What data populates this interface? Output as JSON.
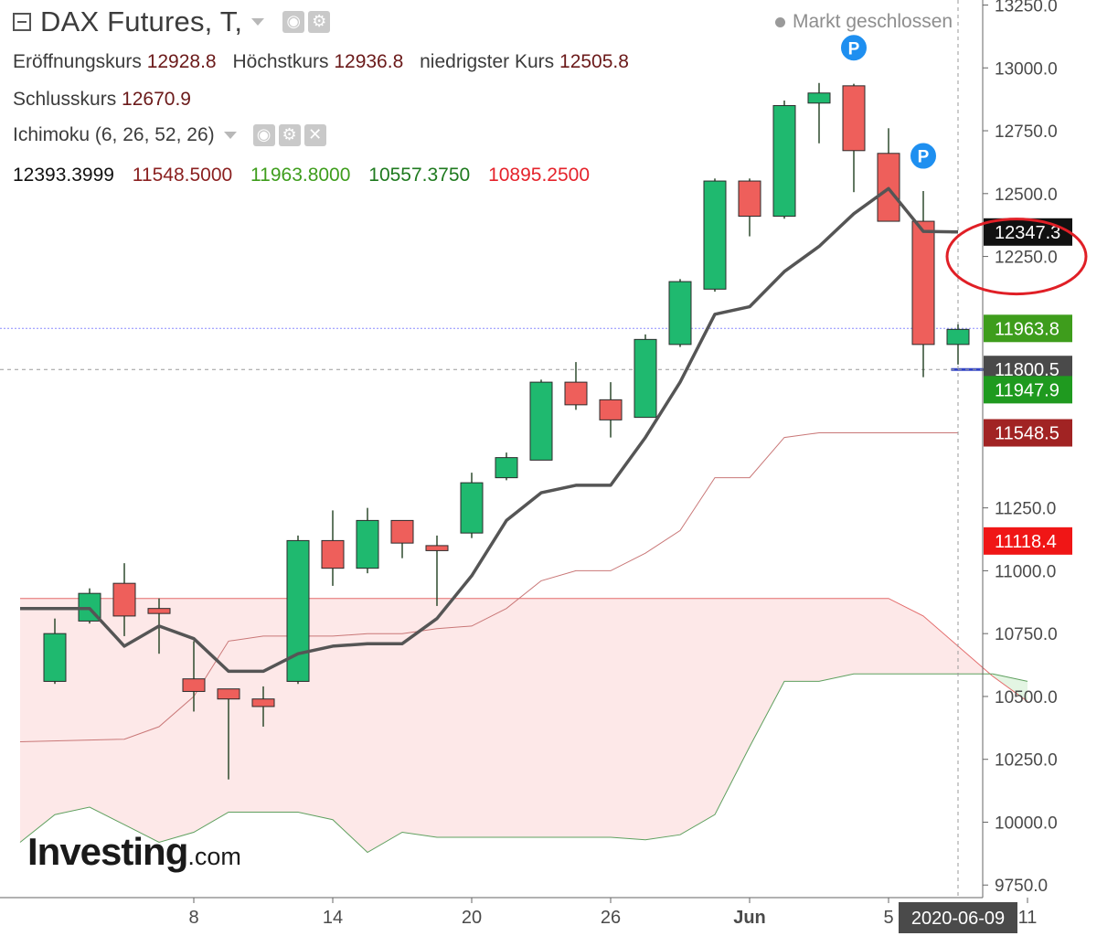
{
  "header": {
    "title": "DAX Futures, T,",
    "market_status": "Markt geschlossen",
    "ohlc": [
      {
        "label": "Eröffnungskurs",
        "value": "12928.8"
      },
      {
        "label": "Höchstkurs",
        "value": "12936.8"
      },
      {
        "label": "niedrigster Kurs",
        "value": "12505.8"
      },
      {
        "label": "Schlusskurs",
        "value": "12670.9"
      }
    ],
    "indicator": {
      "name": "Ichimoku (6, 26, 52, 26)",
      "values": [
        {
          "text": "12393.3999",
          "color": "#111111"
        },
        {
          "text": "11548.5000",
          "color": "#8b2121"
        },
        {
          "text": "11963.8000",
          "color": "#3e9d1c"
        },
        {
          "text": "10557.3750",
          "color": "#1f7a1f"
        },
        {
          "text": "10895.2500",
          "color": "#e5232b"
        }
      ]
    }
  },
  "logo": {
    "main": "Investing",
    "suffix": ".com"
  },
  "colors": {
    "up": "#1fb96f",
    "down": "#ee5f5b",
    "tenkan": "#555555",
    "kijun": "#c97777",
    "span_a": "#e36b6b",
    "span_b": "#5fa05f",
    "cloud": "#fde8e8",
    "cloud_green": "#e3f5e3"
  },
  "chart_data": {
    "type": "candlestick",
    "y_ticks": [
      "13250.0",
      "13000.0",
      "12750.0",
      "12500.0",
      "12250.0",
      "11250.0",
      "11000.0",
      "10750.0",
      "10500.0",
      "10250.0",
      "10000.0",
      "9750.0"
    ],
    "ylim": [
      9700,
      13270
    ],
    "x_ticks": [
      {
        "label": "8",
        "x": 5
      },
      {
        "label": "14",
        "x": 9
      },
      {
        "label": "20",
        "x": 13
      },
      {
        "label": "26",
        "x": 17
      },
      {
        "label": "Jun",
        "x": 21
      },
      {
        "label": "5",
        "x": 25
      },
      {
        "label": "11",
        "x": 29
      }
    ],
    "crosshair": {
      "x": 27,
      "y": 11800.5,
      "x_label": "2020-06-09"
    },
    "candles": [
      {
        "x": 1,
        "o": 10560,
        "h": 10810,
        "l": 10550,
        "c": 10750
      },
      {
        "x": 2,
        "o": 10800,
        "h": 10930,
        "l": 10790,
        "c": 10910
      },
      {
        "x": 3,
        "o": 10950,
        "h": 11030,
        "l": 10740,
        "c": 10820
      },
      {
        "x": 4,
        "o": 10850,
        "h": 10890,
        "l": 10670,
        "c": 10830
      },
      {
        "x": 5,
        "o": 10570,
        "h": 10720,
        "l": 10440,
        "c": 10520
      },
      {
        "x": 6,
        "o": 10530,
        "h": 10530,
        "l": 10170,
        "c": 10490
      },
      {
        "x": 7,
        "o": 10490,
        "h": 10540,
        "l": 10380,
        "c": 10460
      },
      {
        "x": 8,
        "o": 10560,
        "h": 11140,
        "l": 10550,
        "c": 11120
      },
      {
        "x": 9,
        "o": 11120,
        "h": 11240,
        "l": 10940,
        "c": 11010
      },
      {
        "x": 10,
        "o": 11010,
        "h": 11250,
        "l": 10990,
        "c": 11200
      },
      {
        "x": 11,
        "o": 11200,
        "h": 11200,
        "l": 11050,
        "c": 11110
      },
      {
        "x": 12,
        "o": 11100,
        "h": 11140,
        "l": 10860,
        "c": 11080
      },
      {
        "x": 13,
        "o": 11150,
        "h": 11390,
        "l": 11130,
        "c": 11350
      },
      {
        "x": 14,
        "o": 11370,
        "h": 11470,
        "l": 11360,
        "c": 11450
      },
      {
        "x": 15,
        "o": 11440,
        "h": 11760,
        "l": 11440,
        "c": 11750
      },
      {
        "x": 16,
        "o": 11750,
        "h": 11830,
        "l": 11640,
        "c": 11660
      },
      {
        "x": 17,
        "o": 11680,
        "h": 11750,
        "l": 11530,
        "c": 11600
      },
      {
        "x": 18,
        "o": 11610,
        "h": 11940,
        "l": 11610,
        "c": 11920
      },
      {
        "x": 19,
        "o": 11900,
        "h": 12160,
        "l": 11890,
        "c": 12150
      },
      {
        "x": 20,
        "o": 12120,
        "h": 12560,
        "l": 12110,
        "c": 12550
      },
      {
        "x": 21,
        "o": 12550,
        "h": 12560,
        "l": 12330,
        "c": 12410
      },
      {
        "x": 22,
        "o": 12410,
        "h": 12870,
        "l": 12400,
        "c": 12850
      },
      {
        "x": 23,
        "o": 12860,
        "h": 12940,
        "l": 12700,
        "c": 12900
      },
      {
        "x": 24,
        "o": 12928.8,
        "h": 12936.8,
        "l": 12505.8,
        "c": 12670.9
      },
      {
        "x": 25,
        "o": 12660,
        "h": 12760,
        "l": 12390,
        "c": 12390
      },
      {
        "x": 26,
        "o": 12390,
        "h": 12510,
        "l": 11770,
        "c": 11900
      },
      {
        "x": 27,
        "o": 11900,
        "h": 11980,
        "l": 11820,
        "c": 11960
      }
    ],
    "tenkan": [
      [
        0,
        10850
      ],
      [
        2,
        10850
      ],
      [
        3,
        10700
      ],
      [
        4,
        10780
      ],
      [
        5,
        10730
      ],
      [
        6,
        10600
      ],
      [
        7,
        10600
      ],
      [
        8,
        10670
      ],
      [
        9,
        10700
      ],
      [
        10,
        10710
      ],
      [
        11,
        10710
      ],
      [
        12,
        10810
      ],
      [
        13,
        10980
      ],
      [
        14,
        11200
      ],
      [
        15,
        11310
      ],
      [
        16,
        11340
      ],
      [
        17,
        11340
      ],
      [
        18,
        11530
      ],
      [
        19,
        11750
      ],
      [
        20,
        12020
      ],
      [
        21,
        12050
      ],
      [
        22,
        12190
      ],
      [
        23,
        12290
      ],
      [
        24,
        12420
      ],
      [
        25,
        12520
      ],
      [
        26,
        12350
      ],
      [
        27,
        12347.3
      ]
    ],
    "kijun": [
      [
        0,
        10320
      ],
      [
        3,
        10330
      ],
      [
        4,
        10380
      ],
      [
        5,
        10500
      ],
      [
        6,
        10720
      ],
      [
        7,
        10740
      ],
      [
        8,
        10740
      ],
      [
        9,
        10740
      ],
      [
        10,
        10750
      ],
      [
        11,
        10750
      ],
      [
        12,
        10770
      ],
      [
        13,
        10780
      ],
      [
        14,
        10850
      ],
      [
        15,
        10960
      ],
      [
        16,
        11000
      ],
      [
        17,
        11000
      ],
      [
        18,
        11070
      ],
      [
        19,
        11160
      ],
      [
        20,
        11370
      ],
      [
        21,
        11370
      ],
      [
        22,
        11530
      ],
      [
        23,
        11548.5
      ],
      [
        24,
        11548.5
      ],
      [
        27,
        11548.5
      ]
    ],
    "span_a": [
      [
        0,
        10890
      ],
      [
        25,
        10890
      ],
      [
        26,
        10820
      ],
      [
        28,
        10580
      ],
      [
        29,
        10480
      ]
    ],
    "span_b": [
      [
        0,
        9920
      ],
      [
        1,
        10030
      ],
      [
        2,
        10060
      ],
      [
        3,
        9990
      ],
      [
        4,
        9920
      ],
      [
        5,
        9960
      ],
      [
        6,
        10040
      ],
      [
        7,
        10040
      ],
      [
        8,
        10040
      ],
      [
        9,
        10010
      ],
      [
        10,
        9880
      ],
      [
        11,
        9960
      ],
      [
        12,
        9940
      ],
      [
        13,
        9940
      ],
      [
        14,
        9940
      ],
      [
        15,
        9940
      ],
      [
        16,
        9940
      ],
      [
        17,
        9940
      ],
      [
        18,
        9930
      ],
      [
        19,
        9950
      ],
      [
        20,
        10030
      ],
      [
        21,
        10300
      ],
      [
        22,
        10560
      ],
      [
        23,
        10560
      ],
      [
        24,
        10590
      ],
      [
        25,
        10590
      ],
      [
        26,
        10590
      ],
      [
        27,
        10590
      ],
      [
        28,
        10590
      ],
      [
        29,
        10560
      ]
    ],
    "h_lines": [
      {
        "name": "chikou-level",
        "y": 11963.8,
        "color": "#8b8bff",
        "style": "dotted"
      },
      {
        "name": "last-price-line",
        "y": 11800.5,
        "x_from": 26.8,
        "x_to": 28,
        "color": "#3042c6",
        "style": "solid"
      }
    ],
    "price_labels": [
      {
        "text": "12347.3",
        "y": 12347.3,
        "bg": "#111111",
        "fg": "#ffffff"
      },
      {
        "text": "11963.8",
        "y": 11963.8,
        "bg": "#3e9d1c",
        "fg": "#ffffff"
      },
      {
        "text": "11800.5",
        "y": 11800.5,
        "bg": "#4a4a4a",
        "fg": "#ffffff"
      },
      {
        "text": "11947.9",
        "y": 11720,
        "bg": "#1f9a1f",
        "fg": "#ffffff"
      },
      {
        "text": "11548.5",
        "y": 11548.5,
        "bg": "#a12323",
        "fg": "#ffffff"
      },
      {
        "text": "11118.4",
        "y": 11118.4,
        "bg": "#f01616",
        "fg": "#ffffff"
      }
    ],
    "markers": [
      {
        "text": "P",
        "x": 24,
        "y": 13080
      },
      {
        "text": "P",
        "x": 26,
        "y": 12650
      }
    ],
    "annotation_circle": {
      "x": 29,
      "y": 12250
    }
  }
}
